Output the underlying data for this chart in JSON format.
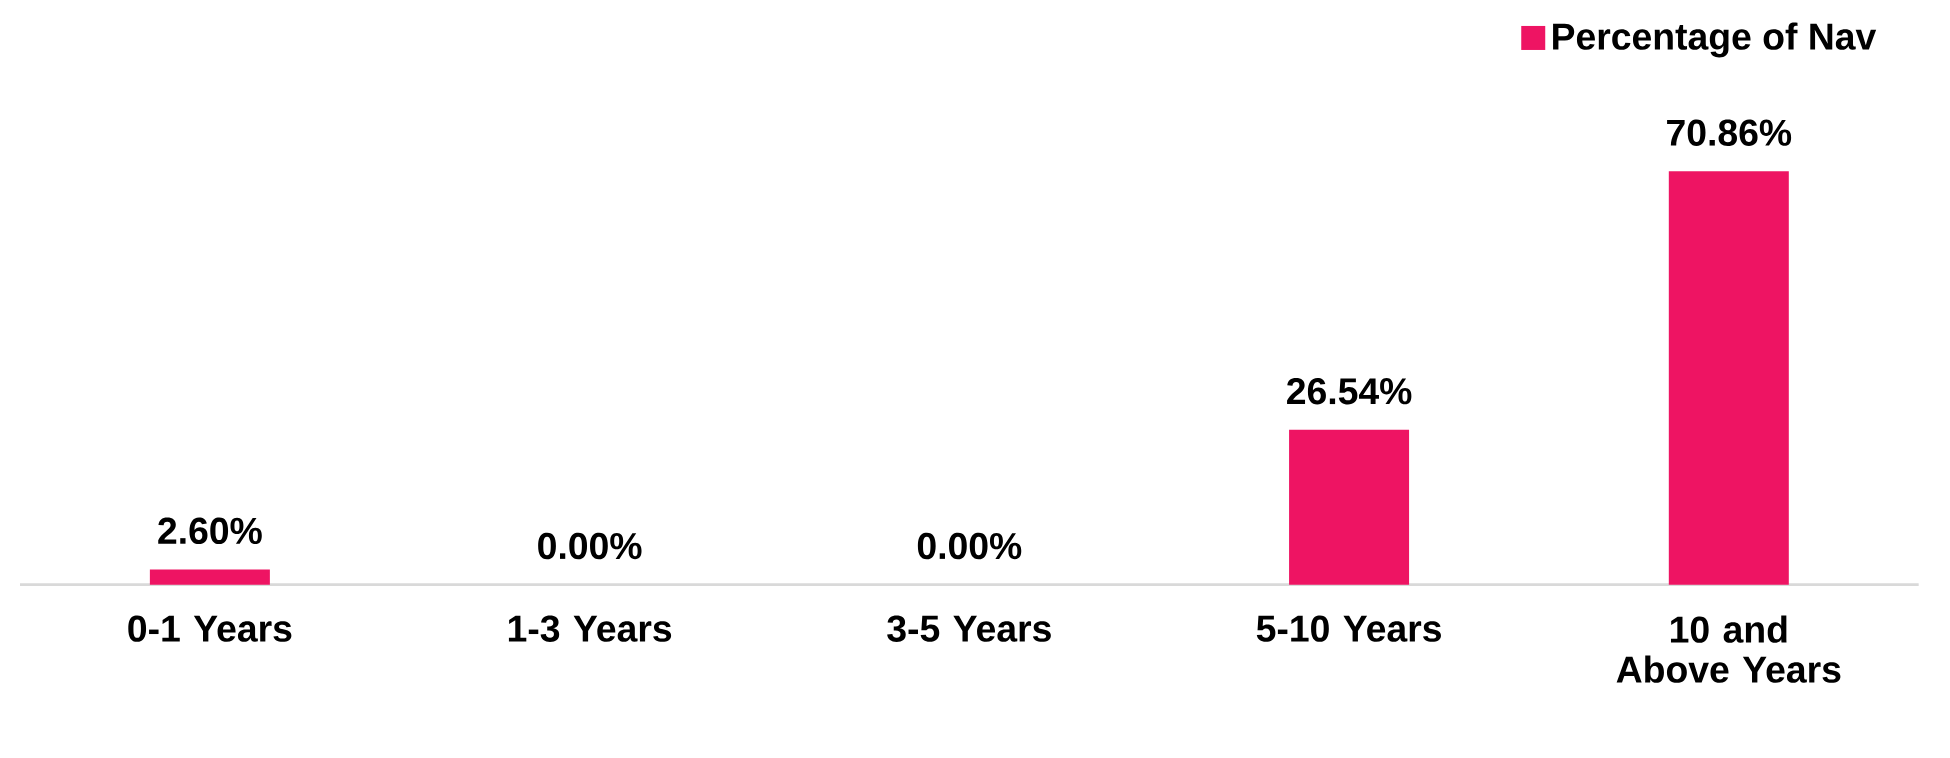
{
  "chart_data": {
    "type": "bar",
    "categories": [
      "0-1 Years",
      "1-3 Years",
      "3-5 Years",
      "5-10 Years",
      "10 and Above Years"
    ],
    "series": [
      {
        "name": "Percentage of Nav",
        "color": "#ee1463",
        "values": [
          2.6,
          0,
          0,
          26.54,
          70.86
        ],
        "value_labels": [
          "2.60%",
          "0.00%",
          "0.00%",
          "26.54%",
          "70.86%"
        ]
      }
    ],
    "legend": "top right"
  }
}
